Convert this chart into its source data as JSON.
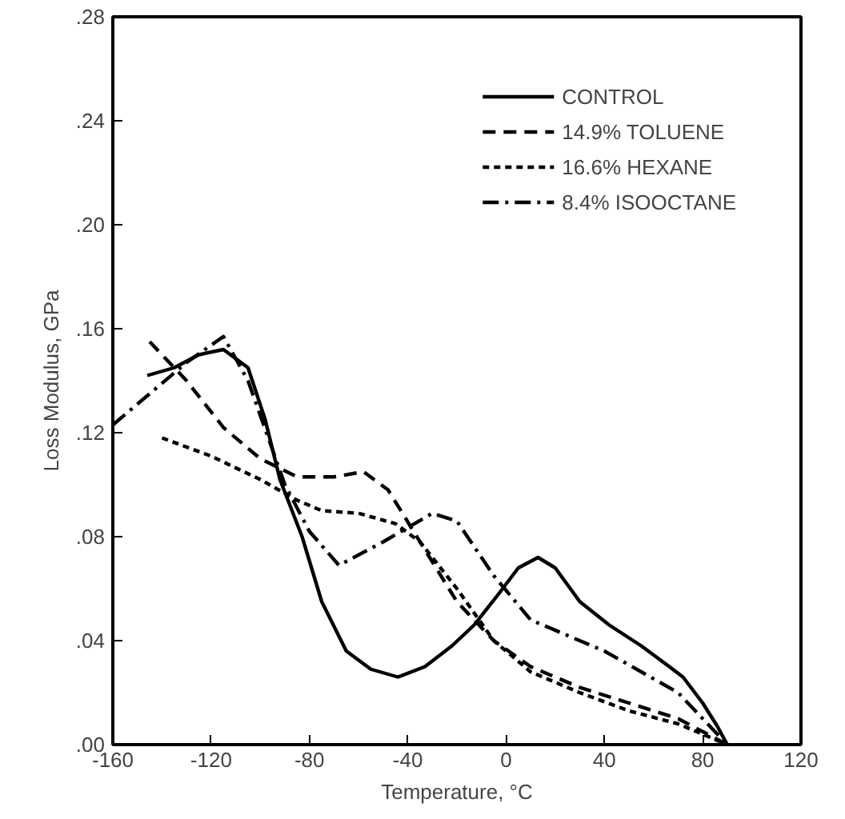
{
  "chart_data": {
    "type": "line",
    "xlabel": "Temperature, °C",
    "ylabel": "Loss Modulus, GPa",
    "xlim": [
      -160,
      120
    ],
    "xticks": [
      -160,
      -120,
      -80,
      -40,
      0,
      40,
      80,
      120
    ],
    "ylim": [
      0,
      0.28
    ],
    "yticks": [
      {
        "value": 0,
        "label": ".00"
      },
      {
        "value": 0.04,
        "label": ".04"
      },
      {
        "value": 0.08,
        "label": ".08"
      },
      {
        "value": 0.12,
        "label": ".12"
      },
      {
        "value": 0.16,
        "label": ".16"
      },
      {
        "value": 0.2,
        "label": ".20"
      },
      {
        "value": 0.24,
        "label": ".24"
      },
      {
        "value": 0.28,
        "label": ".28"
      }
    ],
    "grid": false,
    "legend": "top right",
    "marker": "none",
    "series": [
      {
        "name": "CONTROL",
        "color": "#000000",
        "line_style": "solid",
        "x": [
          -146,
          -135,
          -125,
          -115,
          -105,
          -98,
          -92,
          -83,
          -75,
          -65,
          -55,
          -44,
          -33,
          -22,
          -13,
          -3,
          5,
          13,
          20,
          30,
          42,
          55,
          65,
          72,
          80,
          86,
          90
        ],
        "values": [
          0.142,
          0.145,
          0.15,
          0.152,
          0.145,
          0.125,
          0.102,
          0.08,
          0.055,
          0.036,
          0.029,
          0.026,
          0.03,
          0.038,
          0.046,
          0.058,
          0.068,
          0.072,
          0.068,
          0.055,
          0.046,
          0.038,
          0.031,
          0.026,
          0.016,
          0.007,
          0
        ]
      },
      {
        "name": "14.9% TOLUENE",
        "color": "#000000",
        "line_style": "dashed",
        "x": [
          -145,
          -130,
          -115,
          -100,
          -85,
          -70,
          -58,
          -48,
          -35,
          -20,
          -5,
          10,
          30,
          50,
          70,
          90
        ],
        "values": [
          0.155,
          0.14,
          0.122,
          0.11,
          0.103,
          0.103,
          0.105,
          0.098,
          0.078,
          0.055,
          0.04,
          0.03,
          0.022,
          0.016,
          0.01,
          0
        ]
      },
      {
        "name": "16.6% HEXANE",
        "color": "#000000",
        "line_style": "dotted",
        "x": [
          -140,
          -120,
          -100,
          -85,
          -75,
          -60,
          -45,
          -35,
          -20,
          -5,
          10,
          30,
          50,
          70,
          90
        ],
        "values": [
          0.118,
          0.111,
          0.102,
          0.094,
          0.09,
          0.089,
          0.085,
          0.078,
          0.06,
          0.04,
          0.028,
          0.02,
          0.013,
          0.008,
          0
        ]
      },
      {
        "name": "8.4% ISOOCTANE",
        "color": "#000000",
        "line_style": "dashdot",
        "x": [
          -160,
          -145,
          -130,
          -115,
          -105,
          -90,
          -80,
          -68,
          -50,
          -30,
          -20,
          -5,
          10,
          40,
          70,
          90
        ],
        "values": [
          0.123,
          0.135,
          0.147,
          0.157,
          0.14,
          0.1,
          0.082,
          0.069,
          0.078,
          0.089,
          0.086,
          0.065,
          0.048,
          0.036,
          0.02,
          0
        ]
      }
    ]
  }
}
